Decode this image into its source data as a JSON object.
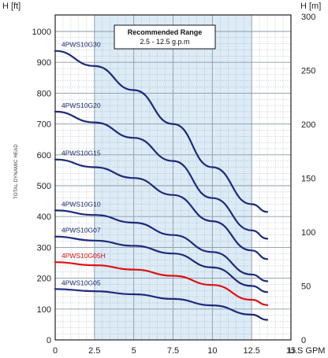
{
  "chart_data": {
    "type": "line",
    "left_axis_unit": "H [ft]",
    "right_axis_unit": "H [m]",
    "x_axis_unit": "U.S GPM",
    "ylabel": "TOTAL DYNAMIC HEAD",
    "xlim": [
      0,
      15
    ],
    "ylim_ft": [
      0,
      1000
    ],
    "ylim_m": [
      0,
      300
    ],
    "x_ticks": [
      "0",
      "2.5",
      "5",
      "7.5",
      "10",
      "12.5",
      "15"
    ],
    "y_ticks_ft": [
      "0",
      "100",
      "200",
      "300",
      "400",
      "500",
      "600",
      "700",
      "800",
      "900",
      "1000"
    ],
    "y_ticks_m": [
      "0",
      "50",
      "100",
      "150",
      "200",
      "250",
      "300"
    ],
    "grid": true,
    "recommended_range": {
      "title": "Recommended Range",
      "text": "2.5 - 12.5 g.p.m",
      "x_from": 2.5,
      "x_to": 12.5,
      "shade_color": "#dcebf6"
    },
    "colors": {
      "curve": "#1e2a7a",
      "highlight": "#dd1111",
      "grid": "#8a9aa8"
    },
    "series": [
      {
        "name": "4PWS10G30",
        "color": "#1e2a7a",
        "x": [
          0,
          2.5,
          5,
          7.5,
          10,
          12.5,
          13.5
        ],
        "y": [
          937,
          888,
          810,
          700,
          560,
          440,
          415
        ]
      },
      {
        "name": "4PWS10G20",
        "color": "#1e2a7a",
        "x": [
          0,
          2.5,
          5,
          7.5,
          10,
          12.5,
          13.5
        ],
        "y": [
          740,
          705,
          655,
          580,
          460,
          355,
          328
        ]
      },
      {
        "name": "4PWS10G15",
        "color": "#1e2a7a",
        "x": [
          0,
          2.5,
          5,
          7.5,
          10,
          12.5,
          13.5
        ],
        "y": [
          585,
          560,
          525,
          470,
          385,
          290,
          262
        ]
      },
      {
        "name": "4PWS10G10",
        "color": "#1e2a7a",
        "x": [
          0,
          2.5,
          5,
          7.5,
          10,
          12.5,
          13.5
        ],
        "y": [
          420,
          405,
          380,
          340,
          285,
          212,
          190
        ]
      },
      {
        "name": "4PWS10G07",
        "color": "#1e2a7a",
        "x": [
          0,
          2.5,
          5,
          7.5,
          10,
          12.5,
          13.5
        ],
        "y": [
          335,
          322,
          305,
          280,
          235,
          175,
          155
        ]
      },
      {
        "name": "4PWS10G05H",
        "color": "#dd1111",
        "x": [
          0,
          2.5,
          5,
          7.5,
          10,
          12.5,
          13.5
        ],
        "y": [
          252,
          242,
          228,
          208,
          178,
          130,
          113
        ]
      },
      {
        "name": "4PWS10G05",
        "color": "#1e2a7a",
        "x": [
          0,
          2.5,
          5,
          7.5,
          10,
          12.5,
          13.5
        ],
        "y": [
          165,
          158,
          148,
          133,
          112,
          82,
          65
        ]
      }
    ]
  }
}
